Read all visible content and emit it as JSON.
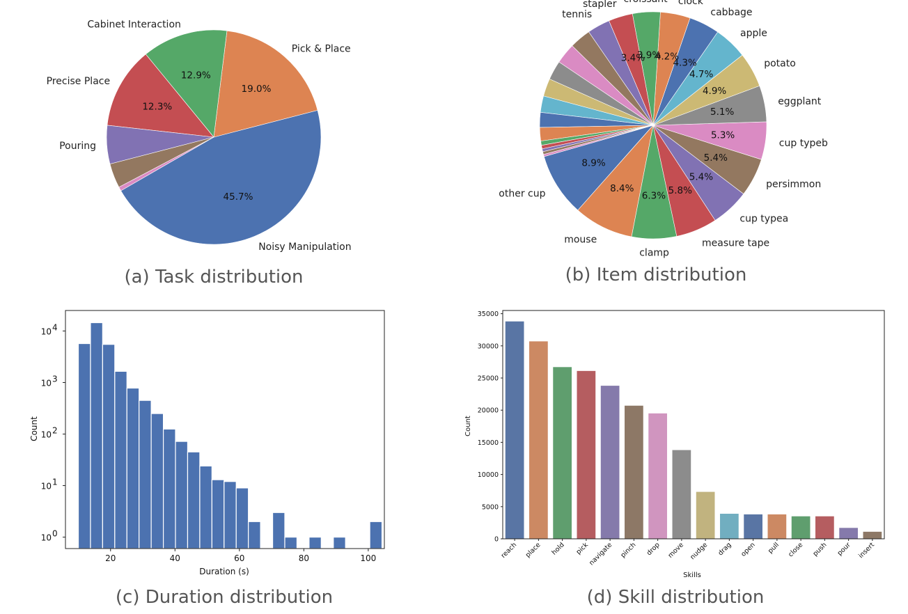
{
  "chart_data": [
    {
      "id": "task",
      "type": "pie",
      "caption": "(a) Task distribution",
      "startangle_deg": 210,
      "slices": [
        {
          "label": "Noisy Manipulation",
          "value": 45.7,
          "pct_label": "45.7%",
          "color": "#4c72b0"
        },
        {
          "label": "Pick & Place",
          "value": 19.0,
          "pct_label": "19.0%",
          "color": "#dd8452"
        },
        {
          "label": "Cabinet Interaction",
          "value": 12.9,
          "pct_label": "12.9%",
          "color": "#55a868"
        },
        {
          "label": "Precise Place",
          "value": 12.3,
          "pct_label": "12.3%",
          "color": "#c44e52"
        },
        {
          "label": "Pouring",
          "value": 5.8,
          "pct_label": "",
          "color": "#8172b3"
        },
        {
          "label": "",
          "value": 3.7,
          "pct_label": "",
          "color": "#937860"
        },
        {
          "label": "",
          "value": 0.6,
          "pct_label": "",
          "color": "#da8bc3"
        }
      ]
    },
    {
      "id": "item",
      "type": "pie",
      "caption": "(b) Item distribution",
      "startangle_deg": 196,
      "slices": [
        {
          "label": "other cup",
          "value": 8.9,
          "pct_label": "8.9%",
          "color": "#4c72b0"
        },
        {
          "label": "mouse",
          "value": 8.4,
          "pct_label": "8.4%",
          "color": "#dd8452"
        },
        {
          "label": "clamp",
          "value": 6.3,
          "pct_label": "6.3%",
          "color": "#55a868"
        },
        {
          "label": "measure tape",
          "value": 5.8,
          "pct_label": "5.8%",
          "color": "#c44e52"
        },
        {
          "label": "cup typea",
          "value": 5.4,
          "pct_label": "5.4%",
          "color": "#8172b3"
        },
        {
          "label": "persimmon",
          "value": 5.4,
          "pct_label": "5.4%",
          "color": "#937860"
        },
        {
          "label": "cup typeb",
          "value": 5.3,
          "pct_label": "5.3%",
          "color": "#da8bc3"
        },
        {
          "label": "eggplant",
          "value": 5.1,
          "pct_label": "5.1%",
          "color": "#8c8c8c"
        },
        {
          "label": "potato",
          "value": 4.9,
          "pct_label": "4.9%",
          "color": "#ccb974"
        },
        {
          "label": "apple",
          "value": 4.7,
          "pct_label": "4.7%",
          "color": "#64b5cd"
        },
        {
          "label": "cabbage",
          "value": 4.3,
          "pct_label": "4.3%",
          "color": "#4c72b0"
        },
        {
          "label": "clock",
          "value": 4.2,
          "pct_label": "4.2%",
          "color": "#dd8452"
        },
        {
          "label": "croissant",
          "value": 3.9,
          "pct_label": "3.9%",
          "color": "#55a868"
        },
        {
          "label": "stapler",
          "value": 3.4,
          "pct_label": "3.4%",
          "color": "#c44e52"
        },
        {
          "label": "tennis",
          "value": 3.2,
          "pct_label": "",
          "color": "#8172b3"
        },
        {
          "label": "",
          "value": 3.0,
          "pct_label": "",
          "color": "#937860"
        },
        {
          "label": "",
          "value": 2.9,
          "pct_label": "",
          "color": "#da8bc3"
        },
        {
          "label": "",
          "value": 2.7,
          "pct_label": "",
          "color": "#8c8c8c"
        },
        {
          "label": "",
          "value": 2.5,
          "pct_label": "",
          "color": "#ccb974"
        },
        {
          "label": "",
          "value": 2.3,
          "pct_label": "",
          "color": "#64b5cd"
        },
        {
          "label": "",
          "value": 2.1,
          "pct_label": "",
          "color": "#4c72b0"
        },
        {
          "label": "",
          "value": 1.9,
          "pct_label": "",
          "color": "#dd8452"
        },
        {
          "label": "",
          "value": 0.6,
          "pct_label": "",
          "color": "#55a868"
        },
        {
          "label": "",
          "value": 0.5,
          "pct_label": "",
          "color": "#c44e52"
        },
        {
          "label": "",
          "value": 0.4,
          "pct_label": "",
          "color": "#8172b3"
        },
        {
          "label": "",
          "value": 0.4,
          "pct_label": "",
          "color": "#937860"
        },
        {
          "label": "",
          "value": 0.3,
          "pct_label": "",
          "color": "#da8bc3"
        }
      ]
    },
    {
      "id": "duration",
      "type": "bar",
      "subtype": "histogram",
      "caption": "(c) Duration distribution",
      "xlabel": "Duration (s)",
      "ylabel": "Count",
      "xscale": "linear",
      "yscale": "log",
      "xlim": [
        6,
        105
      ],
      "ylim": [
        0.6,
        25000
      ],
      "bin_width": 3.77,
      "bar_color": "#4c72b0",
      "xticks": [
        {
          "value": 20,
          "label": "20"
        },
        {
          "value": 40,
          "label": "40"
        },
        {
          "value": 60,
          "label": "60"
        },
        {
          "value": 80,
          "label": "80"
        },
        {
          "value": 100,
          "label": "100"
        }
      ],
      "yticks": [
        {
          "value": 1,
          "base": "10",
          "exp": "0"
        },
        {
          "value": 10,
          "base": "10",
          "exp": "1"
        },
        {
          "value": 100,
          "base": "10",
          "exp": "2"
        },
        {
          "value": 1000,
          "base": "10",
          "exp": "3"
        },
        {
          "value": 10000,
          "base": "10",
          "exp": "4"
        }
      ],
      "bins": [
        {
          "x0": 10.0,
          "count": 5700
        },
        {
          "x0": 13.77,
          "count": 14500
        },
        {
          "x0": 17.54,
          "count": 5500
        },
        {
          "x0": 21.31,
          "count": 1650
        },
        {
          "x0": 25.08,
          "count": 780
        },
        {
          "x0": 28.85,
          "count": 450
        },
        {
          "x0": 32.62,
          "count": 250
        },
        {
          "x0": 36.39,
          "count": 125
        },
        {
          "x0": 40.16,
          "count": 72
        },
        {
          "x0": 43.93,
          "count": 45
        },
        {
          "x0": 47.7,
          "count": 24
        },
        {
          "x0": 51.47,
          "count": 13
        },
        {
          "x0": 55.24,
          "count": 12
        },
        {
          "x0": 59.01,
          "count": 9
        },
        {
          "x0": 62.78,
          "count": 2
        },
        {
          "x0": 70.32,
          "count": 3
        },
        {
          "x0": 74.09,
          "count": 1
        },
        {
          "x0": 81.63,
          "count": 1
        },
        {
          "x0": 89.17,
          "count": 1
        },
        {
          "x0": 100.48,
          "count": 2
        }
      ]
    },
    {
      "id": "skill",
      "type": "bar",
      "caption": "(d) Skill distribution",
      "xlabel": "Skills",
      "ylabel": "Count",
      "ylim": [
        0,
        35500
      ],
      "yticks": [
        0,
        5000,
        10000,
        15000,
        20000,
        25000,
        30000,
        35000
      ],
      "categories": [
        "reach",
        "place",
        "hold",
        "pick",
        "navigate",
        "pinch",
        "drop",
        "move",
        "nudge",
        "drag",
        "open",
        "pull",
        "close",
        "push",
        "pour",
        "insert"
      ],
      "values": [
        33800,
        30700,
        26700,
        26100,
        23800,
        20700,
        19500,
        13800,
        7300,
        3900,
        3800,
        3800,
        3500,
        3500,
        1700,
        1100
      ],
      "colors": [
        "#5975a4",
        "#cc8963",
        "#5f9e6e",
        "#b55d60",
        "#857aab",
        "#8d7866",
        "#d095bf",
        "#8c8c8c",
        "#c1b37f",
        "#71aec0",
        "#5975a4",
        "#cc8963",
        "#5f9e6e",
        "#b55d60",
        "#857aab",
        "#8d7866"
      ]
    }
  ]
}
